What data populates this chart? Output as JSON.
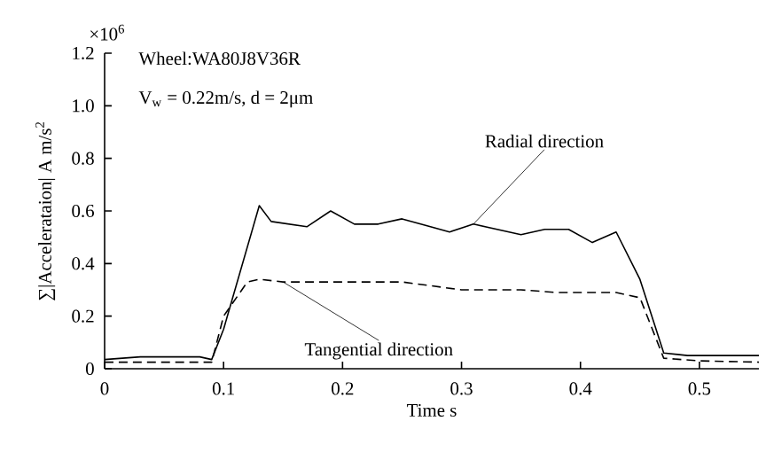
{
  "chart_data": {
    "type": "line",
    "xlabel": "Time   s",
    "ylabel": "∑|Accelerataion| A m/s$^{2}$",
    "annotations": [
      "×10$^{6}$",
      "Wheel:WA80J8V36R",
      "V$_{w}$ = 0.22m/s, d = 2μm"
    ],
    "xlim": [
      0,
      0.55
    ],
    "ylim": [
      0,
      1.2
    ],
    "xticks": [
      0,
      0.1,
      0.2,
      0.3,
      0.4,
      0.5
    ],
    "yticks": [
      0,
      0.2,
      0.4,
      0.6,
      0.8,
      {
        "value": 1.0,
        "label": "1.0"
      },
      1.2
    ],
    "grid": false,
    "legend": false,
    "marker": "none",
    "series": [
      {
        "name": "Radial direction",
        "color": "#000000",
        "line_style": "solid",
        "x": [
          0,
          0.03,
          0.06,
          0.08,
          0.09,
          0.1,
          0.13,
          0.14,
          0.17,
          0.19,
          0.21,
          0.23,
          0.25,
          0.29,
          0.31,
          0.35,
          0.37,
          0.39,
          0.41,
          0.43,
          0.45,
          0.47,
          0.49,
          0.55
        ],
        "values": [
          0.035,
          0.045,
          0.045,
          0.045,
          0.035,
          0.15,
          0.62,
          0.56,
          0.54,
          0.6,
          0.55,
          0.55,
          0.57,
          0.52,
          0.55,
          0.51,
          0.53,
          0.53,
          0.48,
          0.52,
          0.34,
          0.06,
          0.05,
          0.05
        ]
      },
      {
        "name": "Tangential direction",
        "color": "#000000",
        "line_style": "dashed",
        "x": [
          0,
          0.05,
          0.09,
          0.1,
          0.12,
          0.13,
          0.15,
          0.2,
          0.25,
          0.3,
          0.35,
          0.38,
          0.43,
          0.45,
          0.47,
          0.5,
          0.55
        ],
        "values": [
          0.025,
          0.025,
          0.025,
          0.2,
          0.33,
          0.34,
          0.33,
          0.33,
          0.33,
          0.3,
          0.3,
          0.29,
          0.29,
          0.27,
          0.04,
          0.03,
          0.025
        ]
      }
    ]
  }
}
